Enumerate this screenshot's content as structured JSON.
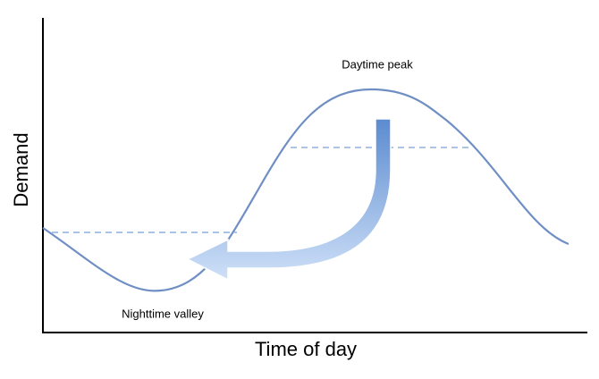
{
  "axes": {
    "y_label": "Demand",
    "x_label": "Time of day"
  },
  "annotations": {
    "peak": "Daytime peak",
    "valley": "Nighttime valley"
  }
}
